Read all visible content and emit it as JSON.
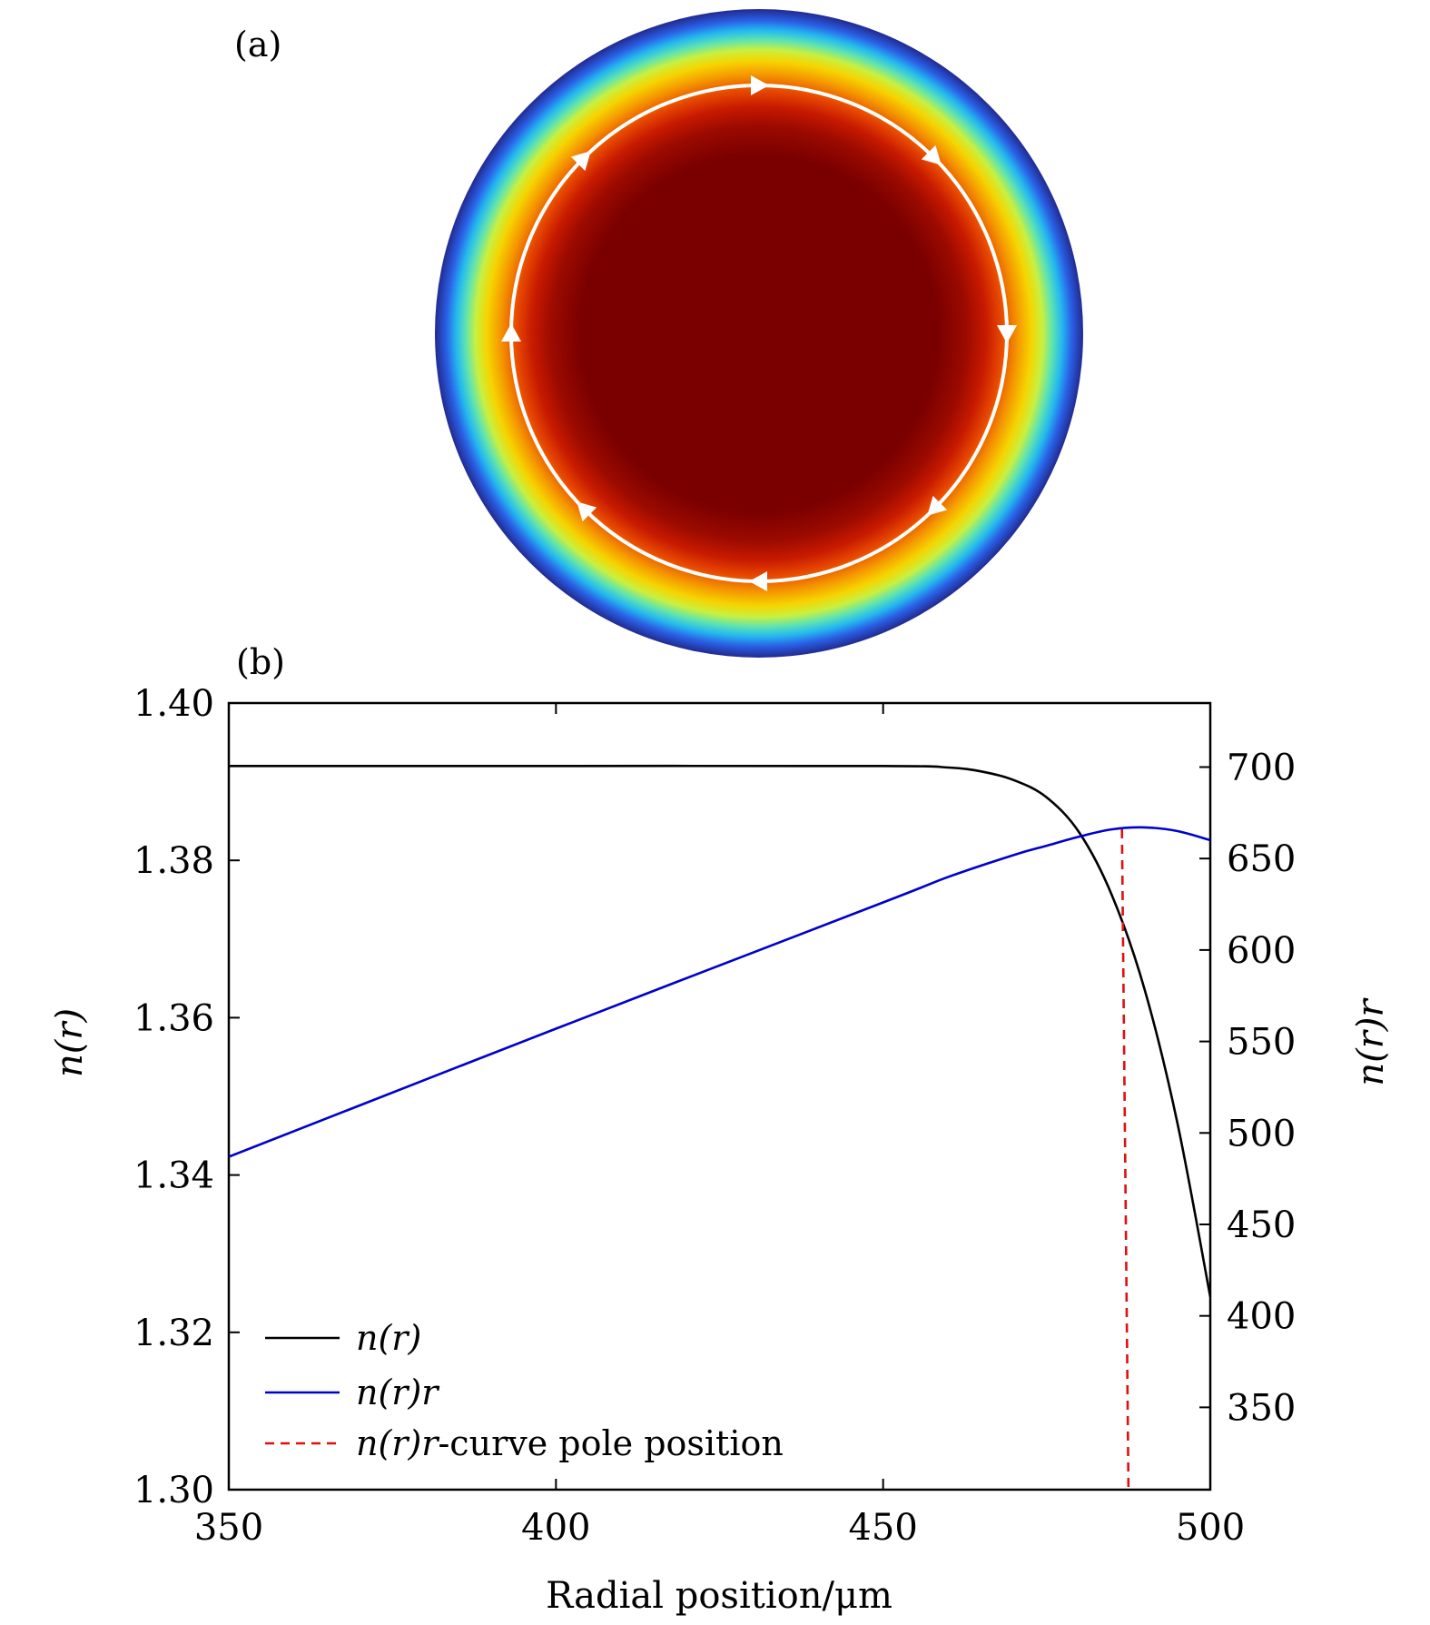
{
  "panel_a": {
    "label": "(a)",
    "heatmap_colors": [
      "#7a0000",
      "#7a0000",
      "#9c0a00",
      "#c81a00",
      "#e84a00",
      "#f59a00",
      "#f6d400",
      "#c8f040",
      "#5fe4b0",
      "#24b8f0",
      "#2a60e6",
      "#222a90"
    ],
    "ring_color": "#ffffff",
    "arrow_count": 8
  },
  "chart_data": {
    "type": "line",
    "title": "(b)",
    "xlabel": "Radial position/μm",
    "ylabel_left": "n(r)",
    "ylabel_right": "n(r)r",
    "xlim": [
      350,
      500
    ],
    "ylim_left": [
      1.3,
      1.4
    ],
    "ylim_right": [
      305,
      735
    ],
    "x_ticks": [
      "350",
      "400",
      "450",
      "500"
    ],
    "y_ticks_left": [
      "1.30",
      "1.32",
      "1.34",
      "1.36",
      "1.38",
      "1.40"
    ],
    "y_ticks_right": [
      "350",
      "400",
      "450",
      "500",
      "550",
      "600",
      "650",
      "700"
    ],
    "series": [
      {
        "name": "n(r)",
        "axis": "left",
        "color": "#000000",
        "style": "solid",
        "x": [
          350,
          400,
          450,
          460,
          465,
          470,
          475,
          480,
          485,
          490,
          495,
          500
        ],
        "y": [
          1.392,
          1.392,
          1.392,
          1.3918,
          1.3913,
          1.3902,
          1.388,
          1.3835,
          1.3755,
          1.3635,
          1.3465,
          1.3245
        ]
      },
      {
        "name": "n(r)r",
        "axis": "right",
        "color": "#0000cc",
        "style": "solid",
        "x": [
          350,
          400,
          450,
          460,
          470,
          475,
          480,
          485,
          490,
          495,
          500
        ],
        "y": [
          487,
          557,
          626,
          640,
          652,
          657,
          662,
          666,
          667,
          665,
          660
        ]
      },
      {
        "name": "n(r)r-curve pole position",
        "axis": "right",
        "color": "#dd1111",
        "style": "dashed",
        "x": [
          486.5,
          487.5
        ],
        "y": [
          666,
          305
        ]
      }
    ],
    "legend": {
      "position": "bottom-left",
      "entries": [
        {
          "math": "n(r)",
          "suffix": ""
        },
        {
          "math": "n(r)r",
          "suffix": ""
        },
        {
          "math": "n(r)r",
          "suffix": "-curve pole position"
        }
      ]
    }
  }
}
